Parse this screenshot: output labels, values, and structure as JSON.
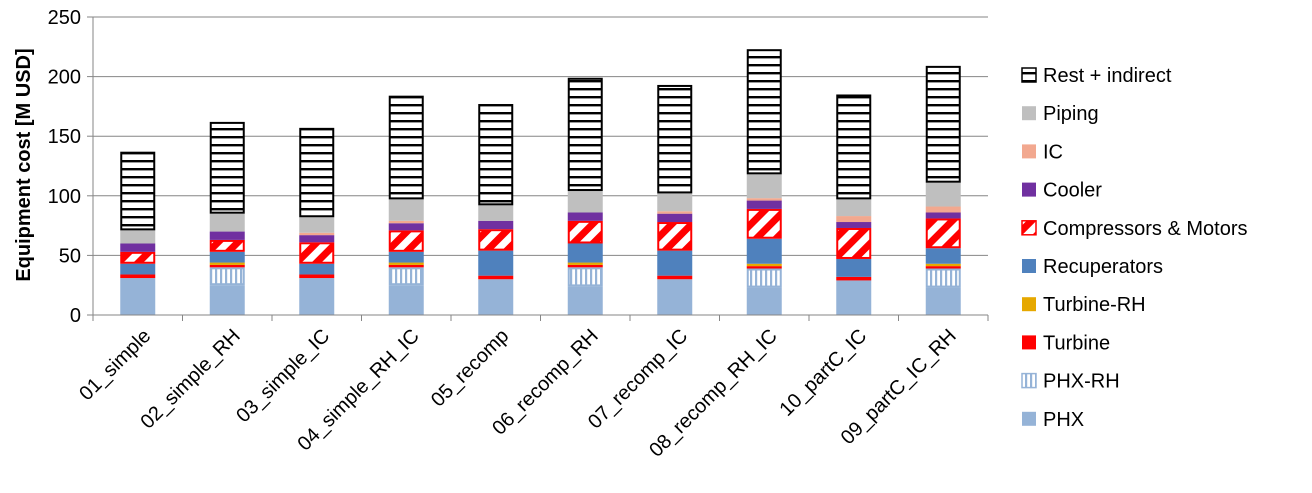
{
  "chart_data": {
    "type": "bar",
    "stacked": true,
    "title": "",
    "xlabel": "",
    "ylabel": "Equipment cost [M USD]",
    "ylim": [
      0,
      250
    ],
    "yticks": [
      0,
      50,
      100,
      150,
      200,
      250
    ],
    "grid": "horizontal",
    "legend_position": "right",
    "categories": [
      "01_simple",
      "02_simple_RH",
      "03_simple_IC",
      "04_simple_RH_IC",
      "05_recomp",
      "06_recomp_RH",
      "07_recomp_IC",
      "08_recomp_RH_IC",
      "10_partC_IC",
      "09_partC_IC_RH"
    ],
    "series": [
      {
        "name": "PHX",
        "color": "#95b3d7",
        "pattern": "solid",
        "values": [
          31,
          25,
          31,
          25,
          30,
          24,
          30,
          23,
          29,
          23
        ]
      },
      {
        "name": "PHX-RH",
        "color": "#95b3d7",
        "pattern": "vertical",
        "values": [
          0,
          15,
          0,
          15,
          0,
          16,
          0,
          16,
          0,
          16
        ]
      },
      {
        "name": "Turbine",
        "color": "#ff0000",
        "pattern": "solid",
        "values": [
          3,
          2,
          3,
          2,
          3,
          2,
          3,
          2,
          3,
          2
        ]
      },
      {
        "name": "Turbine-RH",
        "color": "#e6a800",
        "pattern": "solid",
        "values": [
          0,
          2,
          0,
          2,
          0,
          2,
          0,
          2,
          0,
          2
        ]
      },
      {
        "name": "Recuperators",
        "color": "#4f81bd",
        "pattern": "solid",
        "values": [
          9,
          9,
          9,
          9,
          21,
          16,
          21,
          21,
          15,
          13
        ]
      },
      {
        "name": "Compressors & Motors",
        "color": "#ff0000",
        "pattern": "diagonal",
        "values": [
          10,
          10,
          18,
          18,
          18,
          19,
          24,
          25,
          26,
          25
        ]
      },
      {
        "name": "Cooler",
        "color": "#7030a0",
        "pattern": "solid",
        "values": [
          7,
          7,
          6,
          6,
          7,
          7,
          7,
          7,
          5,
          5
        ]
      },
      {
        "name": "IC",
        "color": "#f2a88f",
        "pattern": "solid",
        "values": [
          0,
          0,
          2,
          2,
          0,
          0,
          2,
          2,
          5,
          5
        ]
      },
      {
        "name": "Piping",
        "color": "#bfbfbf",
        "pattern": "solid",
        "values": [
          11,
          15,
          13,
          18,
          13,
          18,
          15,
          20,
          14,
          20
        ]
      },
      {
        "name": "Rest + indirect",
        "color": "#000000",
        "pattern": "horizontal",
        "values": [
          66,
          77,
          75,
          87,
          85,
          95,
          91,
          105,
          88,
          98
        ]
      }
    ]
  }
}
